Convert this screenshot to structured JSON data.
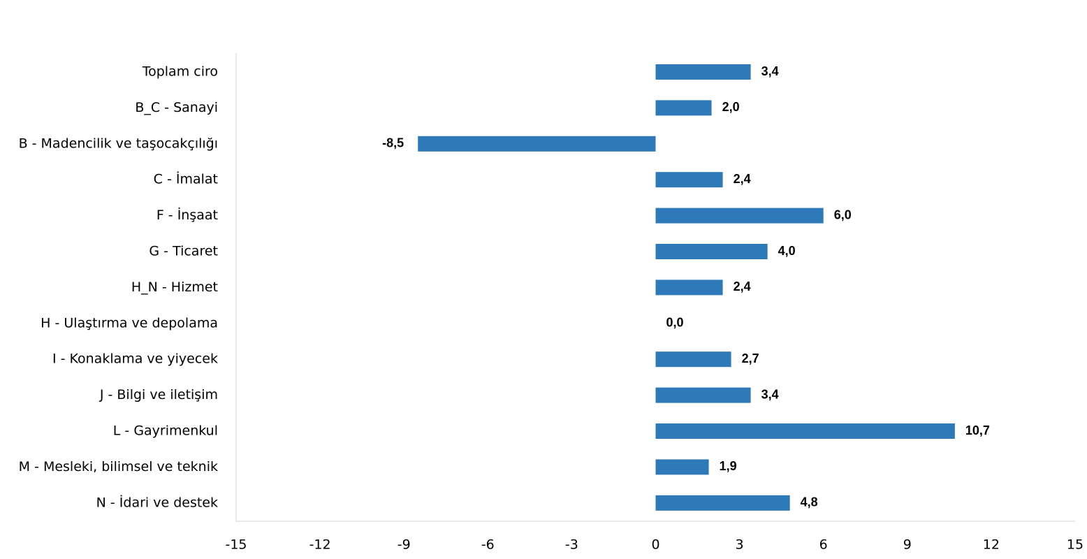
{
  "chart_data": {
    "type": "bar",
    "orientation": "horizontal",
    "title": "",
    "xlabel": "",
    "ylabel": "",
    "categories": [
      "Toplam ciro",
      "B_C - Sanayi",
      "B - Madencilik ve taşocakçılığı",
      "C - İmalat",
      "F - İnşaat",
      "G - Ticaret",
      "H_N - Hizmet",
      "H - Ulaştırma ve depolama",
      "I - Konaklama ve yiyecek",
      "J - Bilgi ve iletişim",
      "L - Gayrimenkul",
      "M - Mesleki, bilimsel ve teknik",
      "N - İdari ve destek"
    ],
    "values": [
      3.4,
      2.0,
      -8.5,
      2.4,
      6.0,
      4.0,
      2.4,
      0.0,
      2.7,
      3.4,
      10.7,
      1.9,
      4.8
    ],
    "value_labels": [
      "3,4",
      "2,0",
      "-8,5",
      "2,4",
      "6,0",
      "4,0",
      "2,4",
      "0,0",
      "2,7",
      "3,4",
      "10,7",
      "1,9",
      "4,8"
    ],
    "xlim": [
      -15,
      15
    ],
    "x_ticks": [
      -15,
      -12,
      -9,
      -6,
      -3,
      0,
      3,
      6,
      9,
      12,
      15
    ],
    "grid": false,
    "legend": "none",
    "bar_color": "#2e7ab8"
  }
}
